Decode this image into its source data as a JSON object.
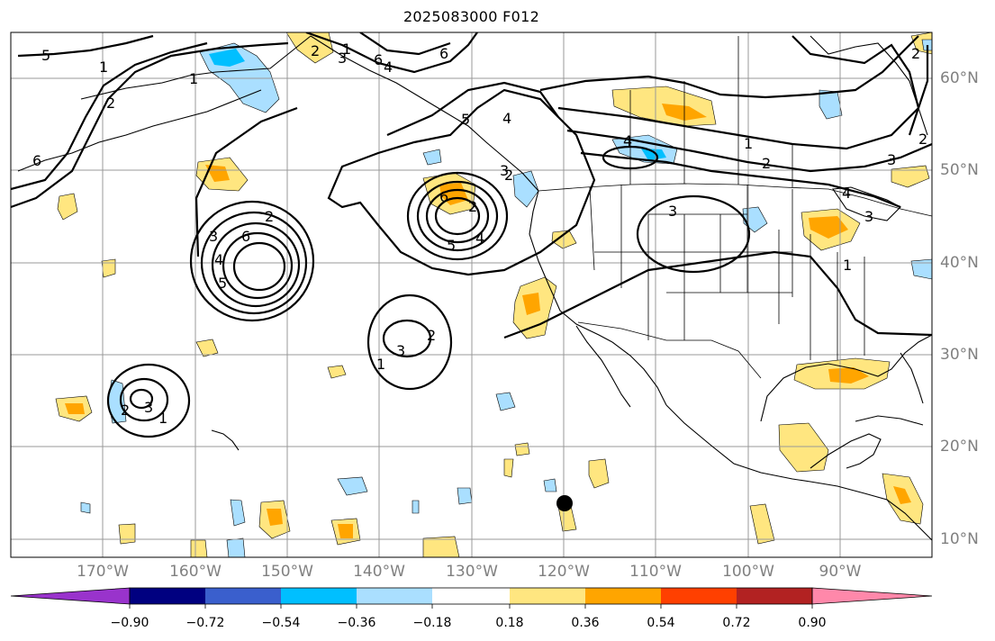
{
  "title": "2025083000 F012",
  "lon_labels": [
    "170°W",
    "160°W",
    "150°W",
    "140°W",
    "130°W",
    "120°W",
    "110°W",
    "100°W",
    "90°W"
  ],
  "lat_labels": [
    "60°N",
    "50°N",
    "40°N",
    "30°N",
    "20°N",
    "10°N"
  ],
  "colorbar": {
    "ticks": [
      "−0.90",
      "−0.72",
      "−0.54",
      "−0.36",
      "−0.18",
      "0.18",
      "0.36",
      "0.54",
      "0.72",
      "0.90"
    ],
    "colors": [
      "#9933cc",
      "#000080",
      "#3a5fcd",
      "#00bfff",
      "#aadfff",
      "#ffffff",
      "#ffe680",
      "#ffa500",
      "#ff4000",
      "#b22222",
      "#ff88aa"
    ]
  },
  "contour_labels": [
    "5",
    "1",
    "2",
    "3",
    "4",
    "6",
    "1",
    "2",
    "3",
    "4",
    "5",
    "6",
    "2",
    "3",
    "4",
    "5",
    "6",
    "1",
    "2",
    "3",
    "2",
    "3",
    "4",
    "6",
    "5",
    "4",
    "1",
    "2",
    "6",
    "1",
    "2",
    "3",
    "4",
    "3",
    "2",
    "2",
    "1",
    "1",
    "2",
    "3"
  ],
  "marker": "storm-center-dot"
}
